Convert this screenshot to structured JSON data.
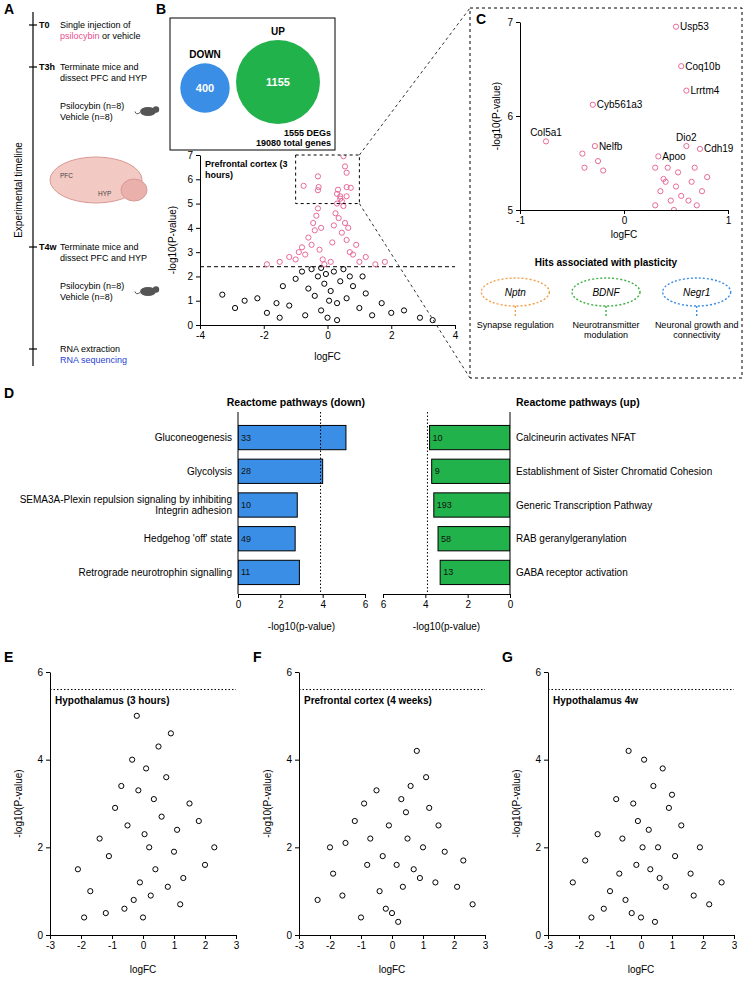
{
  "panel_labels": [
    "A",
    "B",
    "C",
    "D",
    "E",
    "F",
    "G"
  ],
  "timeline": {
    "title": "Experimental timeline",
    "events": [
      {
        "time": "T0",
        "lines": [
          [
            {
              "text": "Single injection of"
            }
          ],
          [
            {
              "text": "psilocybin",
              "color": "#e8508f"
            },
            {
              "text": " or vehicle"
            }
          ]
        ]
      },
      {
        "time": "T3h",
        "lines": [
          [
            {
              "text": "Terminate mice and"
            }
          ],
          [
            {
              "text": "dissect PFC and HYP"
            }
          ]
        ],
        "cohorts": [
          "Psilocybin (n=8)",
          "Vehicle (n=8)"
        ]
      },
      {
        "time": "T4w",
        "lines": [
          [
            {
              "text": "Terminate mice and"
            }
          ],
          [
            {
              "text": "dissect PFC and HYP"
            }
          ]
        ],
        "cohorts": [
          "Psilocybin (n=8)",
          "Vehicle (n=8)"
        ]
      },
      {
        "lines": [
          [
            {
              "text": "RNA extraction"
            }
          ],
          [
            {
              "text": "RNA sequencing",
              "color": "#2a3fd6"
            }
          ]
        ]
      }
    ],
    "brain_labels": [
      "PFC",
      "HYP"
    ]
  },
  "venn": {
    "groups": [
      {
        "label": "DOWN",
        "count": 400,
        "color": "#3a8ee6"
      },
      {
        "label": "UP",
        "count": 1155,
        "color": "#22b24c"
      }
    ],
    "summary": [
      "1555 DEGs",
      "19080 total genes"
    ]
  },
  "plasticity": {
    "title": "Hits associated with plasticity",
    "hits": [
      {
        "gene": "Nptn",
        "description": "Synapse regulation",
        "color": "#f0a04b"
      },
      {
        "gene": "BDNF",
        "description": "Neurotransmitter modulation",
        "color": "#3cb043"
      },
      {
        "gene": "Negr1",
        "description": "Neuronal growth and connectivity",
        "color": "#3a8ee6"
      }
    ]
  },
  "chart_data": [
    {
      "type": "scatter",
      "title": "Prefrontal cortex (3 hours)",
      "x_label": "logFC",
      "y_label": "-log10(P-value)",
      "xlim": [
        -4,
        4
      ],
      "xticks": [
        -4,
        -2,
        0,
        2,
        4
      ],
      "ylim": [
        0,
        7
      ],
      "yticks": [
        0,
        1,
        2,
        3,
        4,
        5,
        6,
        7
      ],
      "threshold": 2.4,
      "series": [
        {
          "color": "#000000",
          "marker": "circle-open",
          "x": [
            -3.3,
            -2.9,
            -2.6,
            -2.2,
            -1.9,
            -1.6,
            -1.4,
            -1.2,
            -1.0,
            -0.8,
            -0.6,
            -0.5,
            -0.4,
            -0.3,
            -0.2,
            -0.1,
            0,
            0.1,
            0.2,
            0.3,
            0.4,
            0.5,
            0.6,
            0.8,
            1.0,
            1.2,
            1.4,
            1.7,
            2.0,
            2.4,
            2.9,
            -0.7,
            0.7,
            -0.2,
            0.3,
            0.05,
            -0.05,
            1.1,
            -1.5,
            3.3
          ],
          "values": [
            1.25,
            0.7,
            1.0,
            1.1,
            0.5,
            0.9,
            1.6,
            0.8,
            1.9,
            2.2,
            1.5,
            2.3,
            1.2,
            2.0,
            0.6,
            1.7,
            0.3,
            1.4,
            2.2,
            0.9,
            1.8,
            2.3,
            1.1,
            1.6,
            0.7,
            1.3,
            0.4,
            0.9,
            0.5,
            0.6,
            0.3,
            0.4,
            2.0,
            2.35,
            0.2,
            1.0,
            2.1,
            2.0,
            0.3,
            0.2
          ]
        },
        {
          "color": "#e86a9a",
          "marker": "circle-open",
          "x": [
            -1.9,
            -1.5,
            -1.2,
            -1.0,
            -0.9,
            -0.8,
            -0.7,
            -0.6,
            -0.5,
            -0.45,
            -0.4,
            -0.35,
            -0.3,
            -0.25,
            -0.2,
            -0.15,
            -0.1,
            0.1,
            0.15,
            0.2,
            0.25,
            0.3,
            0.35,
            0.4,
            0.45,
            0.5,
            0.55,
            0.6,
            0.65,
            0.7,
            0.8,
            0.9,
            1.0,
            1.2,
            1.5,
            1.8,
            -0.75,
            -0.3,
            -0.28,
            0.5,
            0.55,
            0.6,
            0.6,
            0.73,
            0.33,
            0.4,
            0.3,
            0.6,
            -0.3,
            0.45
          ],
          "values": [
            2.5,
            2.6,
            2.8,
            2.7,
            3.0,
            3.2,
            2.9,
            3.6,
            3.3,
            4.2,
            3.9,
            4.5,
            4.8,
            3.1,
            4.0,
            2.7,
            2.5,
            2.6,
            3.4,
            4.1,
            4.6,
            5.0,
            4.4,
            5.3,
            3.8,
            4.9,
            4.2,
            3.5,
            4.0,
            3.0,
            2.9,
            3.3,
            2.6,
            2.8,
            2.5,
            2.6,
            5.73,
            6.12,
            5.68,
            6.95,
            6.53,
            6.27,
            5.68,
            5.65,
            5.57,
            5.2,
            5.4,
            5.3,
            5.55,
            5.1
          ]
        }
      ]
    },
    {
      "type": "scatter",
      "x_label": "logFC",
      "y_label": "-log10(P-value)",
      "xlim": [
        -1,
        1
      ],
      "xticks": [
        -1,
        0,
        1
      ],
      "ylim": [
        5,
        7
      ],
      "yticks": [
        5,
        6,
        7
      ],
      "series": [
        {
          "color": "#e86a9a",
          "marker": "circle-open",
          "x": [
            0.5,
            0.55,
            0.6,
            -0.3,
            -0.75,
            -0.28,
            0.6,
            0.73,
            0.33,
            -0.4,
            -0.38,
            -0.25,
            -0.2,
            0.3,
            0.35,
            0.4,
            0.42,
            0.45,
            0.5,
            0.52,
            0.55,
            0.68,
            0.65,
            0.7,
            0.75,
            0.8,
            0.38,
            0.48,
            0.62,
            0.3
          ],
          "values": [
            6.95,
            6.53,
            6.27,
            6.12,
            5.73,
            5.68,
            5.68,
            5.65,
            5.57,
            5.6,
            5.45,
            5.52,
            5.42,
            5.05,
            5.2,
            5.3,
            5.45,
            5.1,
            5.25,
            5.4,
            5.15,
            5.45,
            5.3,
            5.05,
            5.2,
            5.35,
            5.33,
            5.0,
            5.1,
            5.45
          ],
          "labels": [
            "Usp53",
            "Coq10b",
            "Lrrtm4",
            "Cyb561a3",
            "Col5a1",
            "Nelfb",
            "Dio2",
            "Cdh19",
            "Apoo",
            null,
            null,
            null,
            null,
            null,
            null,
            null,
            null,
            null,
            null,
            null,
            null,
            null,
            null,
            null,
            null,
            null,
            null,
            null,
            null,
            null
          ]
        }
      ]
    },
    {
      "type": "bar",
      "orientation": "horizontal",
      "title": "Reactome pathways (down)",
      "x_label": "-log10(p-value)",
      "categories": [
        "Gluconeogenesis",
        "Glycolysis",
        "SEMA3A-Plexin repulsion signaling by inhibiting Integrin adhesion",
        "Hedgehog 'off' state",
        "Retrograde neurotrophin signalling"
      ],
      "values": [
        5.1,
        4.0,
        2.8,
        2.7,
        2.9
      ],
      "gene_counts": [
        33,
        28,
        10,
        49,
        11
      ],
      "color": "#3a8ee6",
      "xlim": [
        0,
        6
      ],
      "xticks": [
        0,
        2,
        4,
        6
      ],
      "threshold": 3.9
    },
    {
      "type": "bar",
      "orientation": "horizontal",
      "title": "Reactome pathways (up)",
      "x_label": "-log10(p-value)",
      "categories": [
        "Calcineurin activates NFAT",
        "Establishment of Sister Chromatid Cohesion",
        "Generic Transcription Pathway",
        "RAB geranylgeranylation",
        "GABA receptor activation"
      ],
      "values": [
        3.8,
        3.7,
        3.6,
        3.4,
        3.3
      ],
      "gene_counts": [
        10,
        9,
        193,
        58,
        13
      ],
      "color": "#22b24c",
      "xlim": [
        6,
        0
      ],
      "xticks": [
        6,
        4,
        2,
        0
      ],
      "threshold": 3.9
    },
    {
      "type": "scatter",
      "title": "Hypothalamus (3 hours)",
      "x_label": "logFC",
      "y_label": "-log10(P-value)",
      "xlim": [
        -3,
        3
      ],
      "xticks": [
        -3,
        -2,
        -1,
        0,
        1,
        2,
        3
      ],
      "ylim": [
        0,
        6
      ],
      "yticks": [
        0,
        2,
        4,
        6
      ],
      "threshold": 5.6,
      "series": [
        {
          "color": "#000000",
          "marker": "circle-open",
          "x": [
            -2.1,
            -1.7,
            -1.4,
            -1.1,
            -0.9,
            -0.7,
            -0.5,
            -0.35,
            -0.2,
            -0.1,
            0,
            0.1,
            0.2,
            0.35,
            0.5,
            0.6,
            0.75,
            0.9,
            1.0,
            1.1,
            1.3,
            1.5,
            1.8,
            2.3,
            -0.3,
            0.4,
            -0.6,
            0.8,
            0.05,
            -1.9,
            1.2,
            -0.15,
            0.25,
            2.0,
            -1.2
          ],
          "values": [
            1.5,
            1.0,
            2.2,
            1.8,
            2.9,
            3.4,
            2.5,
            4.0,
            5.0,
            1.2,
            0.4,
            3.8,
            2.0,
            3.1,
            4.3,
            2.7,
            3.6,
            4.6,
            1.9,
            2.4,
            1.3,
            3.0,
            2.6,
            2.0,
            0.8,
            1.5,
            0.6,
            1.1,
            2.3,
            0.4,
            0.7,
            3.3,
            0.9,
            1.6,
            0.5
          ]
        }
      ]
    },
    {
      "type": "scatter",
      "title": "Prefrontal cortex (4 weeks)",
      "x_label": "logFC",
      "y_label": "-log10(P-value)",
      "xlim": [
        -3,
        3
      ],
      "xticks": [
        -3,
        -2,
        -1,
        0,
        1,
        2,
        3
      ],
      "ylim": [
        0,
        6
      ],
      "yticks": [
        0,
        2,
        4,
        6
      ],
      "threshold": 5.6,
      "series": [
        {
          "color": "#000000",
          "marker": "circle-open",
          "x": [
            -2.4,
            -1.9,
            -1.5,
            -1.2,
            -0.9,
            -0.7,
            -0.5,
            -0.3,
            -0.1,
            0,
            0.15,
            0.3,
            0.45,
            0.6,
            0.8,
            1.0,
            1.2,
            1.4,
            1.7,
            2.1,
            2.6,
            -0.4,
            0.2,
            0.7,
            -0.8,
            1.1,
            -1.6,
            0.5,
            -0.2,
            0.9,
            1.5,
            -1.0,
            0.35,
            2.3,
            -2.0
          ],
          "values": [
            0.8,
            1.4,
            2.1,
            2.6,
            3.0,
            2.2,
            3.3,
            1.8,
            2.5,
            0.5,
            1.6,
            3.1,
            2.8,
            3.4,
            4.2,
            2.0,
            2.9,
            1.2,
            1.9,
            1.1,
            0.7,
            1.0,
            0.3,
            1.5,
            1.6,
            3.6,
            0.9,
            2.2,
            0.6,
            1.3,
            2.5,
            0.4,
            1.1,
            1.7,
            2.0
          ]
        }
      ]
    },
    {
      "type": "scatter",
      "title": "Hypothalamus 4w",
      "x_label": "logFC",
      "y_label": "-log10(P-value)",
      "xlim": [
        -3,
        3
      ],
      "xticks": [
        -3,
        -2,
        -1,
        0,
        1,
        2,
        3
      ],
      "ylim": [
        0,
        6
      ],
      "yticks": [
        0,
        2,
        4,
        6
      ],
      "threshold": 5.6,
      "series": [
        {
          "color": "#000000",
          "marker": "circle-open",
          "x": [
            -2.2,
            -1.8,
            -1.4,
            -1.0,
            -0.8,
            -0.6,
            -0.4,
            -0.25,
            -0.1,
            0,
            0.1,
            0.25,
            0.4,
            0.55,
            0.7,
            0.9,
            1.1,
            1.3,
            1.6,
            1.9,
            2.6,
            -0.5,
            0.3,
            -1.2,
            0.8,
            0.05,
            1.0,
            -0.3,
            1.7,
            2.2,
            -1.6,
            0.6,
            -0.15,
            0.45,
            -0.7
          ],
          "values": [
            1.2,
            1.7,
            2.3,
            1.0,
            3.1,
            2.2,
            4.2,
            3.0,
            2.6,
            0.4,
            4.0,
            2.4,
            3.4,
            2.0,
            3.8,
            2.9,
            1.8,
            2.5,
            1.4,
            2.0,
            1.2,
            0.8,
            1.5,
            0.6,
            1.1,
            2.0,
            3.2,
            0.5,
            0.9,
            0.7,
            0.4,
            1.3,
            1.6,
            0.3,
            1.4
          ]
        }
      ]
    }
  ]
}
